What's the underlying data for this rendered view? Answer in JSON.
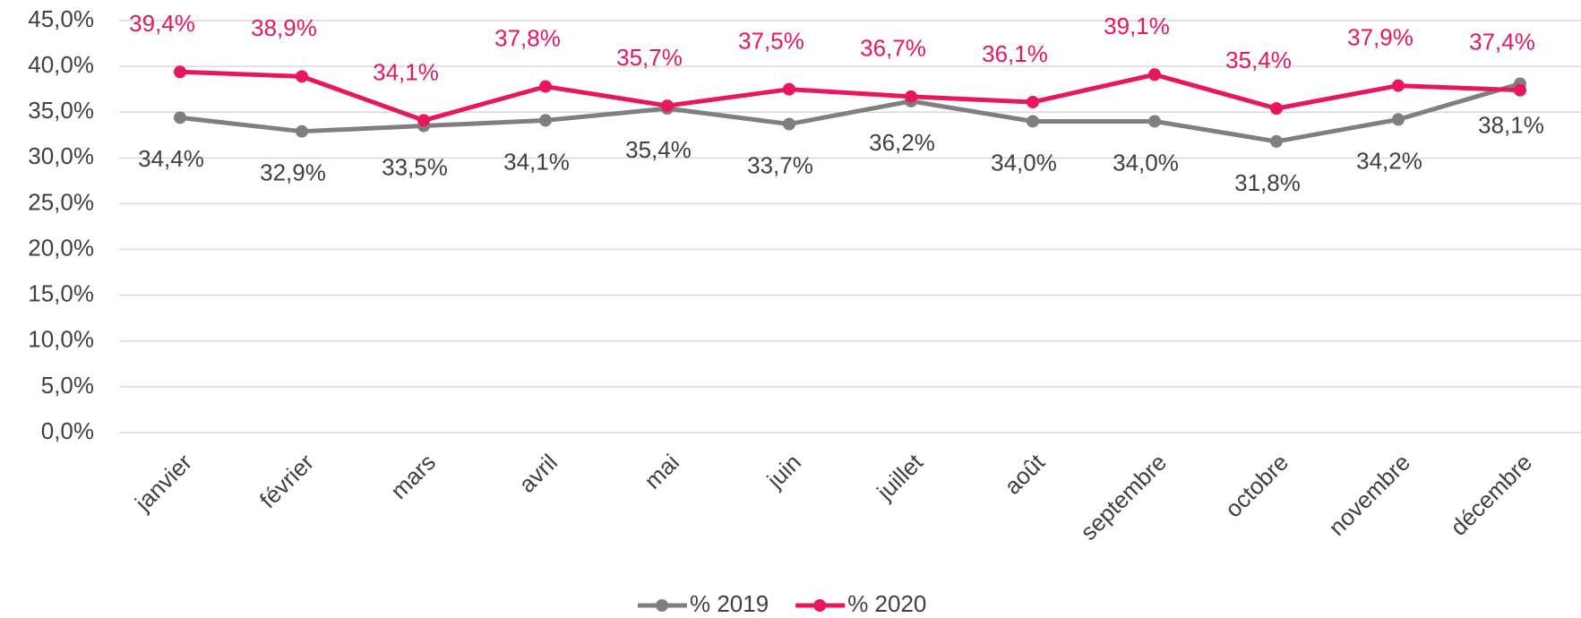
{
  "chart_data": {
    "type": "line",
    "categories": [
      "janvier",
      "février",
      "mars",
      "avril",
      "mai",
      "juin",
      "juillet",
      "août",
      "septembre",
      "octobre",
      "novembre",
      "décembre"
    ],
    "series": [
      {
        "name": "% 2019",
        "color": "#7f7f7f",
        "values": [
          34.4,
          32.9,
          33.5,
          34.1,
          35.4,
          33.7,
          36.2,
          34.0,
          34.0,
          31.8,
          34.2,
          38.1
        ],
        "value_labels": [
          "34,4%",
          "32,9%",
          "33,5%",
          "34,1%",
          "35,4%",
          "33,7%",
          "36,2%",
          "34,0%",
          "34,0%",
          "31,8%",
          "34,2%",
          "38,1%"
        ]
      },
      {
        "name": "% 2020",
        "color": "#e8175d",
        "values": [
          39.4,
          38.9,
          34.1,
          37.8,
          35.7,
          37.5,
          36.7,
          36.1,
          39.1,
          35.4,
          37.9,
          37.4
        ],
        "value_labels": [
          "39,4%",
          "38,9%",
          "34,1%",
          "37,8%",
          "35,7%",
          "37,5%",
          "36,7%",
          "36,1%",
          "39,1%",
          "35,4%",
          "37,9%",
          "37,4%"
        ]
      }
    ],
    "ylim": [
      0,
      45
    ],
    "yticks": [
      {
        "value": 0,
        "label": "0,0%"
      },
      {
        "value": 5,
        "label": "5,0%"
      },
      {
        "value": 10,
        "label": "10,0%"
      },
      {
        "value": 15,
        "label": "15,0%"
      },
      {
        "value": 20,
        "label": "20,0%"
      },
      {
        "value": 25,
        "label": "25,0%"
      },
      {
        "value": 30,
        "label": "30,0%"
      },
      {
        "value": 35,
        "label": "35,0%"
      },
      {
        "value": 40,
        "label": "40,0%"
      },
      {
        "value": 45,
        "label": "45,0%"
      }
    ],
    "grid": true,
    "legend": "bottom"
  }
}
